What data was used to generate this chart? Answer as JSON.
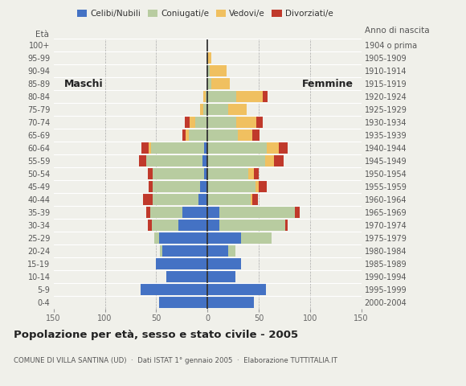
{
  "age_groups": [
    "0-4",
    "5-9",
    "10-14",
    "15-19",
    "20-24",
    "25-29",
    "30-34",
    "35-39",
    "40-44",
    "45-49",
    "50-54",
    "55-59",
    "60-64",
    "65-69",
    "70-74",
    "75-79",
    "80-84",
    "85-89",
    "90-94",
    "95-99",
    "100+"
  ],
  "birth_years": [
    "2000-2004",
    "1995-1999",
    "1990-1994",
    "1985-1989",
    "1980-1984",
    "1975-1979",
    "1970-1974",
    "1965-1969",
    "1960-1964",
    "1955-1959",
    "1950-1954",
    "1945-1949",
    "1940-1944",
    "1935-1939",
    "1930-1934",
    "1925-1929",
    "1920-1924",
    "1915-1919",
    "1910-1914",
    "1905-1909",
    "1904 o prima"
  ],
  "males_celibe": [
    47,
    65,
    40,
    50,
    44,
    47,
    28,
    24,
    9,
    7,
    3,
    5,
    3,
    0,
    0,
    0,
    0,
    0,
    0,
    0,
    0
  ],
  "males_coniugato": [
    0,
    0,
    0,
    0,
    2,
    5,
    26,
    32,
    44,
    46,
    50,
    55,
    52,
    18,
    12,
    4,
    2,
    0,
    0,
    0,
    0
  ],
  "males_vedovo": [
    0,
    0,
    0,
    0,
    0,
    0,
    0,
    0,
    0,
    0,
    0,
    0,
    2,
    3,
    5,
    3,
    2,
    0,
    0,
    0,
    0
  ],
  "males_divorziato": [
    0,
    0,
    0,
    0,
    0,
    0,
    4,
    4,
    10,
    4,
    5,
    7,
    7,
    3,
    5,
    0,
    0,
    0,
    0,
    0,
    0
  ],
  "females_nubile": [
    45,
    57,
    27,
    33,
    20,
    33,
    12,
    12,
    0,
    0,
    0,
    0,
    0,
    0,
    0,
    0,
    0,
    0,
    0,
    0,
    0
  ],
  "females_coniugata": [
    0,
    0,
    0,
    0,
    7,
    30,
    64,
    73,
    42,
    47,
    40,
    56,
    58,
    30,
    28,
    20,
    28,
    4,
    2,
    0,
    0
  ],
  "females_vedova": [
    0,
    0,
    0,
    0,
    0,
    0,
    0,
    0,
    2,
    3,
    5,
    9,
    12,
    14,
    20,
    18,
    26,
    18,
    17,
    4,
    0
  ],
  "females_divorziata": [
    0,
    0,
    0,
    0,
    0,
    0,
    2,
    5,
    5,
    8,
    5,
    9,
    8,
    7,
    6,
    0,
    5,
    0,
    0,
    0,
    0
  ],
  "color_celibe": "#4472c4",
  "color_coniugato": "#b8cca0",
  "color_vedovo": "#f0c060",
  "color_divorziato": "#c0392b",
  "title": "Popolazione per età, sesso e stato civile - 2005",
  "subtitle": "COMUNE DI VILLA SANTINA (UD)  ·  Dati ISTAT 1° gennaio 2005  ·  Elaborazione TUTTITALIA.IT",
  "xlim": 150,
  "background": "#f0f0ea",
  "legend_labels": [
    "Celibi/Nubili",
    "Coniugati/e",
    "Vedovi/e",
    "Divorziati/e"
  ]
}
